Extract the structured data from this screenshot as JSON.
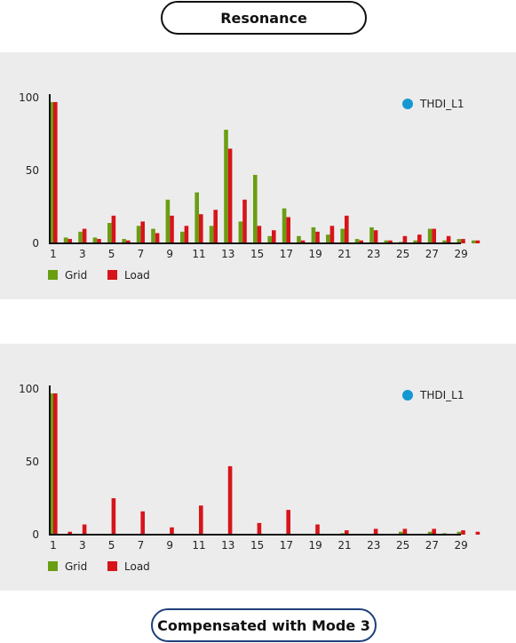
{
  "top_label": "Resonance",
  "bottom_label": "Compensated with Mode 3",
  "colors": {
    "grid": "#6a9e12",
    "load": "#d7141a",
    "indicator": "#1597d3"
  },
  "chart_data": [
    {
      "type": "bar",
      "indicator": "THDI_L1",
      "ylim": [
        0,
        100
      ],
      "yticks": [
        "0",
        "50",
        "100"
      ],
      "xtick_labels": [
        "1",
        "3",
        "5",
        "7",
        "9",
        "11",
        "13",
        "15",
        "17",
        "19",
        "21",
        "23",
        "25",
        "27",
        "29"
      ],
      "categories": [
        "1",
        "2",
        "3",
        "4",
        "5",
        "6",
        "7",
        "8",
        "9",
        "10",
        "11",
        "12",
        "13",
        "14",
        "15",
        "16",
        "17",
        "18",
        "19",
        "20",
        "21",
        "22",
        "23",
        "24",
        "25",
        "26",
        "27",
        "28",
        "29",
        "30"
      ],
      "series": [
        {
          "name": "Grid",
          "values": [
            97,
            4,
            8,
            4,
            14,
            3,
            12,
            10,
            30,
            8,
            35,
            12,
            78,
            15,
            47,
            5,
            24,
            5,
            11,
            6,
            10,
            3,
            11,
            2,
            1,
            2,
            10,
            2,
            3,
            2
          ]
        },
        {
          "name": "Load",
          "values": [
            97,
            3,
            10,
            3,
            19,
            2,
            15,
            7,
            19,
            12,
            20,
            23,
            65,
            30,
            12,
            9,
            18,
            2,
            8,
            12,
            19,
            2,
            9,
            2,
            5,
            6,
            10,
            5,
            3,
            2
          ]
        }
      ]
    },
    {
      "type": "bar",
      "indicator": "THDI_L1",
      "ylim": [
        0,
        100
      ],
      "yticks": [
        "0",
        "50",
        "100"
      ],
      "xtick_labels": [
        "1",
        "3",
        "5",
        "7",
        "9",
        "11",
        "13",
        "15",
        "17",
        "19",
        "21",
        "23",
        "25",
        "27",
        "29"
      ],
      "categories": [
        "1",
        "2",
        "3",
        "4",
        "5",
        "6",
        "7",
        "8",
        "9",
        "10",
        "11",
        "12",
        "13",
        "14",
        "15",
        "16",
        "17",
        "18",
        "19",
        "20",
        "21",
        "22",
        "23",
        "24",
        "25",
        "26",
        "27",
        "28",
        "29",
        "30"
      ],
      "series": [
        {
          "name": "Grid",
          "values": [
            97,
            0,
            0,
            0,
            0,
            0,
            0,
            0,
            0,
            0,
            0,
            0,
            0,
            0,
            0,
            0,
            0,
            0,
            0,
            0,
            1,
            0,
            0,
            0,
            2,
            0,
            2,
            1,
            2,
            0
          ]
        },
        {
          "name": "Load",
          "values": [
            97,
            2,
            7,
            0,
            25,
            0,
            16,
            0,
            5,
            0,
            20,
            0,
            47,
            0,
            8,
            0,
            17,
            0,
            7,
            0,
            3,
            0,
            4,
            0,
            4,
            0,
            4,
            0,
            3,
            2
          ]
        }
      ]
    }
  ]
}
